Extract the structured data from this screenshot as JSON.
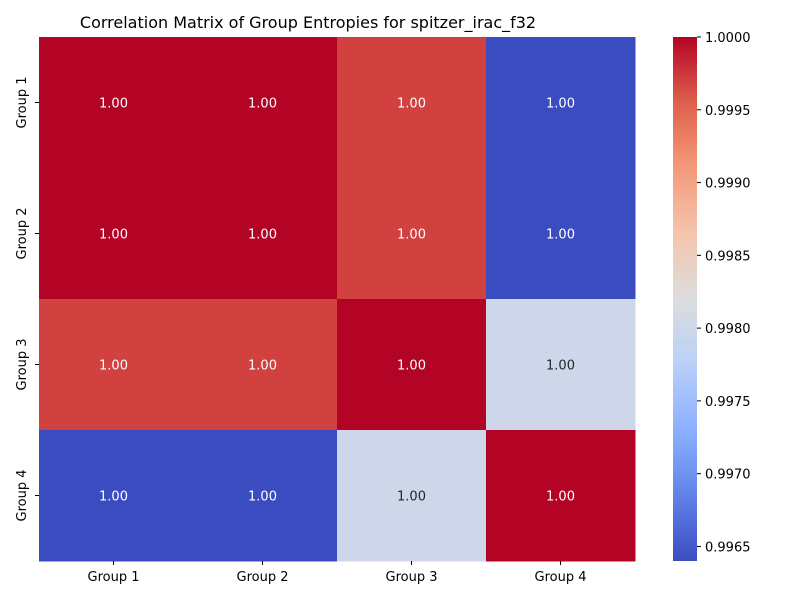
{
  "chart_data": {
    "type": "heatmap",
    "title": "Correlation Matrix of Group Entropies for spitzer_irac_f32",
    "xlabel": "",
    "ylabel": "",
    "x_categories": [
      "Group 1",
      "Group 2",
      "Group 3",
      "Group 4"
    ],
    "y_categories": [
      "Group 1",
      "Group 2",
      "Group 3",
      "Group 4"
    ],
    "values": [
      [
        1.0,
        1.0,
        0.9997,
        0.9964
      ],
      [
        1.0,
        1.0,
        0.9997,
        0.9964
      ],
      [
        0.9997,
        0.9997,
        1.0,
        0.998
      ],
      [
        0.9964,
        0.9964,
        0.998,
        1.0
      ]
    ],
    "cell_labels": [
      [
        "1.00",
        "1.00",
        "1.00",
        "1.00"
      ],
      [
        "1.00",
        "1.00",
        "1.00",
        "1.00"
      ],
      [
        "1.00",
        "1.00",
        "1.00",
        "1.00"
      ],
      [
        "1.00",
        "1.00",
        "1.00",
        "1.00"
      ]
    ],
    "colormap": "coolwarm",
    "colorbar": {
      "range": [
        0.9964,
        1.0
      ],
      "ticks": [
        0.9965,
        0.997,
        0.9975,
        0.998,
        0.9985,
        0.999,
        0.9995,
        1.0
      ],
      "tick_labels": [
        "0.9965",
        "0.9970",
        "0.9975",
        "0.9980",
        "0.9985",
        "0.9990",
        "0.9995",
        "1.0000"
      ]
    },
    "grid": false
  }
}
